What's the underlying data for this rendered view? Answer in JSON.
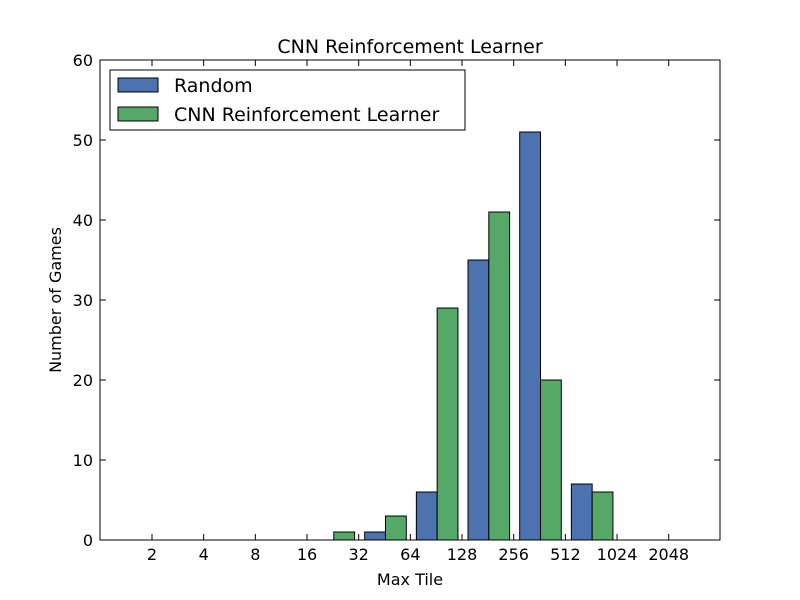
{
  "chart_data": {
    "type": "bar",
    "title": "CNN Reinforcement Learner",
    "xlabel": "Max Tile",
    "ylabel": "Number of Games",
    "categories": [
      "2",
      "4",
      "8",
      "16",
      "32",
      "64",
      "128",
      "256",
      "512",
      "1024",
      "2048"
    ],
    "ylim": [
      0,
      60
    ],
    "yticks": [
      0,
      10,
      20,
      30,
      40,
      50,
      60
    ],
    "legend_position": "top-left",
    "series": [
      {
        "name": "Random",
        "color": "#4c72b0",
        "values": [
          0,
          0,
          0,
          0,
          1,
          6,
          35,
          51,
          7,
          0,
          0
        ]
      },
      {
        "name": "CNN Reinforcement Learner",
        "color": "#55a868",
        "values": [
          0,
          0,
          0,
          1,
          3,
          29,
          41,
          20,
          6,
          0,
          0
        ]
      }
    ]
  }
}
